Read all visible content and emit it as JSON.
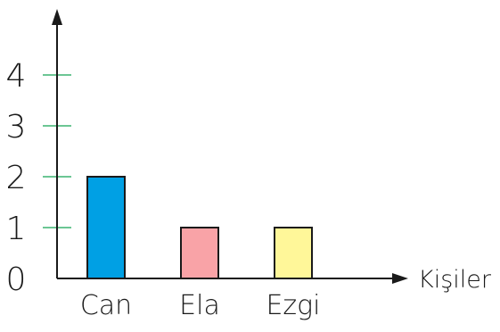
{
  "chart_data": {
    "type": "bar",
    "title": "",
    "xlabel": "Kişiler",
    "ylabel": "",
    "categories": [
      "Can",
      "Ela",
      "Ezgi"
    ],
    "values": [
      2,
      1,
      1
    ],
    "bar_colors": [
      "#00a0e4",
      "#f9a3a7",
      "#fff799"
    ],
    "y_ticks": [
      "0",
      "1",
      "2",
      "3",
      "4"
    ],
    "ylim": [
      0,
      4
    ],
    "tick_color": "#3cb371",
    "axis_color": "#1a1a1a",
    "grid": false,
    "legend": "none"
  }
}
